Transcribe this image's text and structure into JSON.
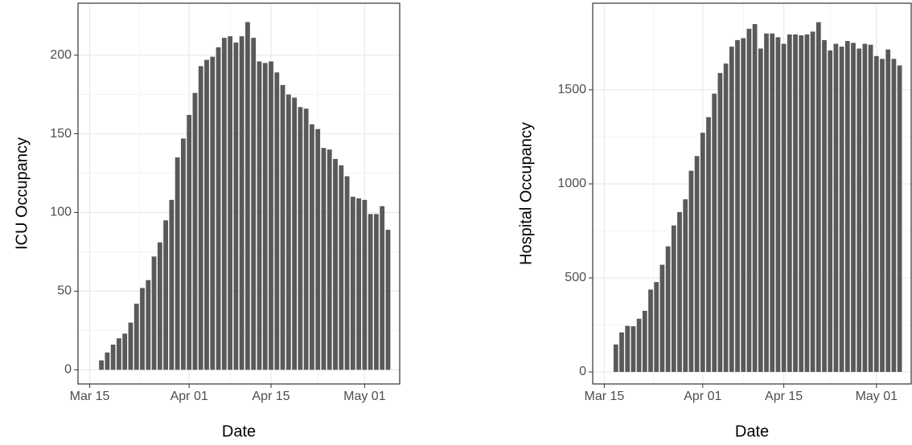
{
  "chart_data": [
    {
      "type": "bar",
      "x_label": "Date",
      "y_label": "ICU Occupancy",
      "color": "#595959",
      "grid": true,
      "x": [
        "Mar 17",
        "Mar 18",
        "Mar 19",
        "Mar 20",
        "Mar 21",
        "Mar 22",
        "Mar 23",
        "Mar 24",
        "Mar 25",
        "Mar 26",
        "Mar 27",
        "Mar 28",
        "Mar 29",
        "Mar 30",
        "Mar 31",
        "Apr 01",
        "Apr 02",
        "Apr 03",
        "Apr 04",
        "Apr 05",
        "Apr 06",
        "Apr 07",
        "Apr 08",
        "Apr 09",
        "Apr 10",
        "Apr 11",
        "Apr 12",
        "Apr 13",
        "Apr 14",
        "Apr 15",
        "Apr 16",
        "Apr 17",
        "Apr 18",
        "Apr 19",
        "Apr 20",
        "Apr 21",
        "Apr 22",
        "Apr 23",
        "Apr 24",
        "Apr 25",
        "Apr 26",
        "Apr 27",
        "Apr 28",
        "Apr 29",
        "Apr 30",
        "May 01",
        "May 02",
        "May 03",
        "May 04",
        "May 05"
      ],
      "values": [
        6,
        11,
        16,
        20,
        23,
        30,
        42,
        52,
        57,
        72,
        81,
        95,
        108,
        135,
        147,
        162,
        176,
        193,
        197,
        199,
        205,
        211,
        212,
        208,
        212,
        221,
        211,
        196,
        195,
        196,
        189,
        181,
        175,
        173,
        167,
        166,
        156,
        153,
        141,
        140,
        134,
        130,
        123,
        110,
        109,
        108,
        99,
        99,
        104,
        89
      ],
      "xlim": [
        "Mar 13",
        "May 07"
      ],
      "xticks": [
        "Mar 15",
        "Apr 01",
        "Apr 15",
        "May 01"
      ],
      "ylim": [
        -9,
        233
      ],
      "yticks": [
        0,
        50,
        100,
        150,
        200
      ]
    },
    {
      "type": "bar",
      "x_label": "Date",
      "y_label": "Hospital Occupancy",
      "color": "#595959",
      "grid": true,
      "x": [
        "Mar 17",
        "Mar 18",
        "Mar 19",
        "Mar 20",
        "Mar 21",
        "Mar 22",
        "Mar 23",
        "Mar 24",
        "Mar 25",
        "Mar 26",
        "Mar 27",
        "Mar 28",
        "Mar 29",
        "Mar 30",
        "Mar 31",
        "Apr 01",
        "Apr 02",
        "Apr 03",
        "Apr 04",
        "Apr 05",
        "Apr 06",
        "Apr 07",
        "Apr 08",
        "Apr 09",
        "Apr 10",
        "Apr 11",
        "Apr 12",
        "Apr 13",
        "Apr 14",
        "Apr 15",
        "Apr 16",
        "Apr 17",
        "Apr 18",
        "Apr 19",
        "Apr 20",
        "Apr 21",
        "Apr 22",
        "Apr 23",
        "Apr 24",
        "Apr 25",
        "Apr 26",
        "Apr 27",
        "Apr 28",
        "Apr 29",
        "Apr 30",
        "May 01",
        "May 02",
        "May 03",
        "May 04",
        "May 05"
      ],
      "values": [
        146,
        210,
        245,
        243,
        283,
        325,
        438,
        478,
        570,
        668,
        779,
        850,
        918,
        1070,
        1148,
        1272,
        1355,
        1480,
        1590,
        1640,
        1730,
        1765,
        1775,
        1825,
        1850,
        1720,
        1800,
        1800,
        1780,
        1745,
        1795,
        1795,
        1790,
        1795,
        1810,
        1860,
        1765,
        1710,
        1745,
        1730,
        1760,
        1750,
        1720,
        1745,
        1740,
        1680,
        1665,
        1715,
        1665,
        1630
      ],
      "xlim": [
        "Mar 13",
        "May 07"
      ],
      "xticks": [
        "Mar 15",
        "Apr 01",
        "Apr 15",
        "May 01"
      ],
      "ylim": [
        -64,
        1961
      ],
      "yticks": [
        0,
        500,
        1000,
        1500
      ]
    }
  ]
}
